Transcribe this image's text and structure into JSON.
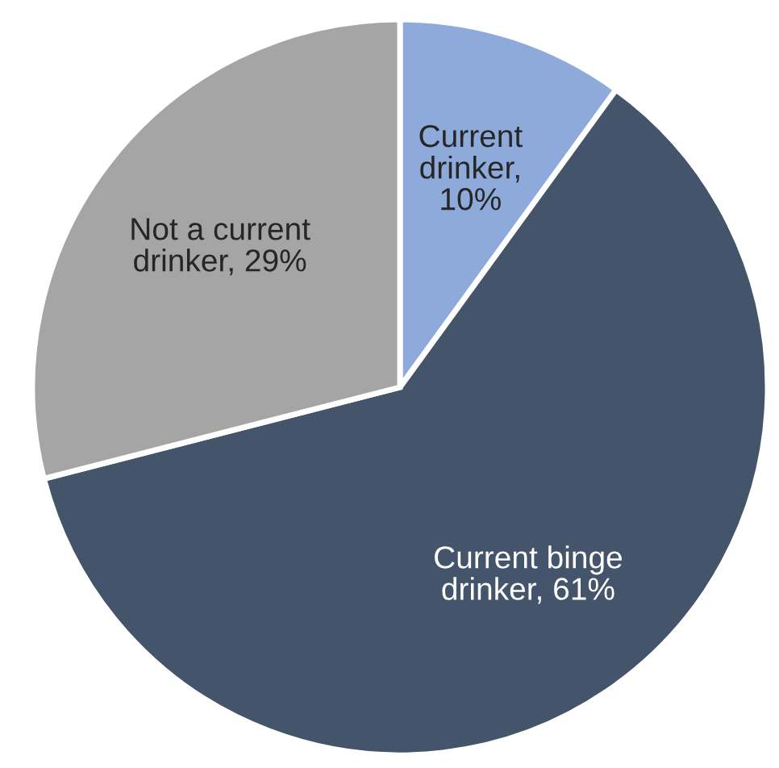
{
  "chart_data": {
    "type": "pie",
    "categories": [
      "Current\ndrinker",
      "Current binge\ndrinker",
      "Not a current\ndrinker"
    ],
    "values": [
      10,
      61,
      29
    ],
    "colors": [
      "#8eaadb",
      "#44546a",
      "#a5a5a5"
    ],
    "value_labels": [
      ",\n10%",
      ", 61%",
      ", 29%"
    ],
    "legend": false
  }
}
